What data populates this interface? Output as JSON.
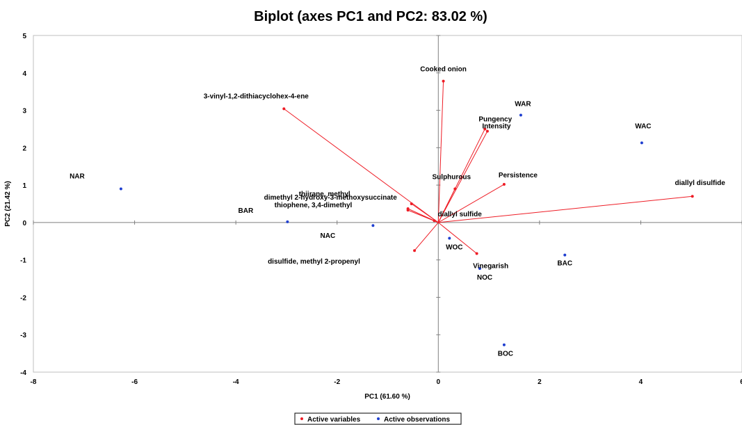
{
  "chart_data": {
    "type": "scatter",
    "title": "Biplot (axes PC1 and PC2: 83.02 %)",
    "xlabel": "PC1 (61.60 %)",
    "ylabel": "PC2 (21.42 %)",
    "xlim": [
      -8,
      6
    ],
    "ylim": [
      -4,
      5
    ],
    "xticks": [
      -8,
      -6,
      -4,
      -2,
      0,
      2,
      4,
      6
    ],
    "yticks": [
      -4,
      -3,
      -2,
      -1,
      0,
      1,
      2,
      3,
      4,
      5
    ],
    "grid": false,
    "legend_position": "bottom",
    "colors": {
      "variables": "#ee1c25",
      "observations": "#1f3fd0"
    },
    "series": [
      {
        "name": "Active variables",
        "kind": "vectors",
        "points": [
          {
            "label": "Cooked onion",
            "x": 0.1,
            "y": 3.78
          },
          {
            "label": "3-vinyl-1,2-dithiacyclohex-4-ene",
            "x": -3.05,
            "y": 3.04
          },
          {
            "label": "Pungency",
            "x": 0.92,
            "y": 2.5
          },
          {
            "label": "Intensity",
            "x": 0.97,
            "y": 2.44
          },
          {
            "label": "Persistence",
            "x": 1.3,
            "y": 1.02
          },
          {
            "label": "diallyl disulfide",
            "x": 5.02,
            "y": 0.7
          },
          {
            "label": "Sulphurous",
            "x": 0.33,
            "y": 0.9
          },
          {
            "label": "thiirane, methyl",
            "x": -0.53,
            "y": 0.5
          },
          {
            "label": "dimethyl 2-hydroxy-3-methoxysuccinate",
            "x": -0.6,
            "y": 0.37
          },
          {
            "label": "thiophene, 3,4-dimethyl",
            "x": -0.6,
            "y": 0.33
          },
          {
            "label": "diallyl sulfide",
            "x": -0.08,
            "y": 0.05
          },
          {
            "label": "disulfide, methyl 2-propenyl",
            "x": -0.47,
            "y": -0.75
          },
          {
            "label": "Vinegarish",
            "x": 0.76,
            "y": -0.83
          }
        ]
      },
      {
        "name": "Active observations",
        "kind": "points",
        "points": [
          {
            "label": "NAR",
            "x": -6.27,
            "y": 0.9
          },
          {
            "label": "BAR",
            "x": -2.98,
            "y": 0.02
          },
          {
            "label": "NAC",
            "x": -1.29,
            "y": -0.08
          },
          {
            "label": "WOC",
            "x": 0.22,
            "y": -0.42
          },
          {
            "label": "NOC",
            "x": 0.82,
            "y": -1.23
          },
          {
            "label": "BOC",
            "x": 1.3,
            "y": -3.27
          },
          {
            "label": "BAC",
            "x": 2.5,
            "y": -0.87
          },
          {
            "label": "WAR",
            "x": 1.63,
            "y": 2.87
          },
          {
            "label": "WAC",
            "x": 4.02,
            "y": 2.13
          }
        ]
      }
    ]
  }
}
